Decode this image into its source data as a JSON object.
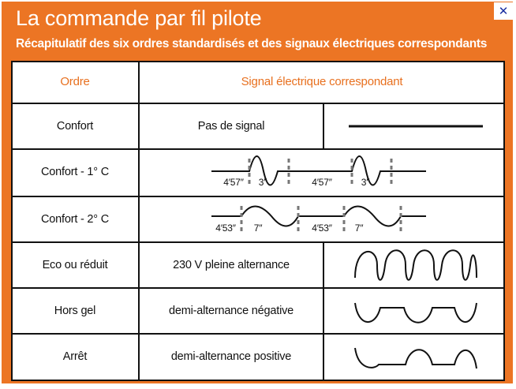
{
  "header": {
    "title": "La commande par fil pilote",
    "subtitle": "Récapitulatif des six ordres standardisés et des signaux électriques correspondants"
  },
  "controls": {
    "close_glyph": "✕"
  },
  "table": {
    "col_order_header": "Ordre",
    "col_signal_header": "Signal électrique correspondant",
    "rows": [
      {
        "order": "Confort",
        "signal_label": "Pas de signal",
        "waveform": "flat-line"
      },
      {
        "order": "Confort - 1° C",
        "waveform": "pulse-train",
        "timing": {
          "pause": "4′57″",
          "pulse": "3″"
        }
      },
      {
        "order": "Confort - 2° C",
        "waveform": "pulse-train",
        "timing": {
          "pause": "4′53″",
          "pulse": "7″"
        }
      },
      {
        "order": "Eco ou réduit",
        "signal_label": "230 V pleine alternance",
        "waveform": "full-sine"
      },
      {
        "order": "Hors gel",
        "signal_label": "demi-alternance négative",
        "waveform": "negative-half-wave"
      },
      {
        "order": "Arrêt",
        "signal_label": "demi-alternance positive",
        "waveform": "positive-half-wave"
      }
    ]
  },
  "colors": {
    "accent": "#ec7524",
    "line": "#111111"
  }
}
